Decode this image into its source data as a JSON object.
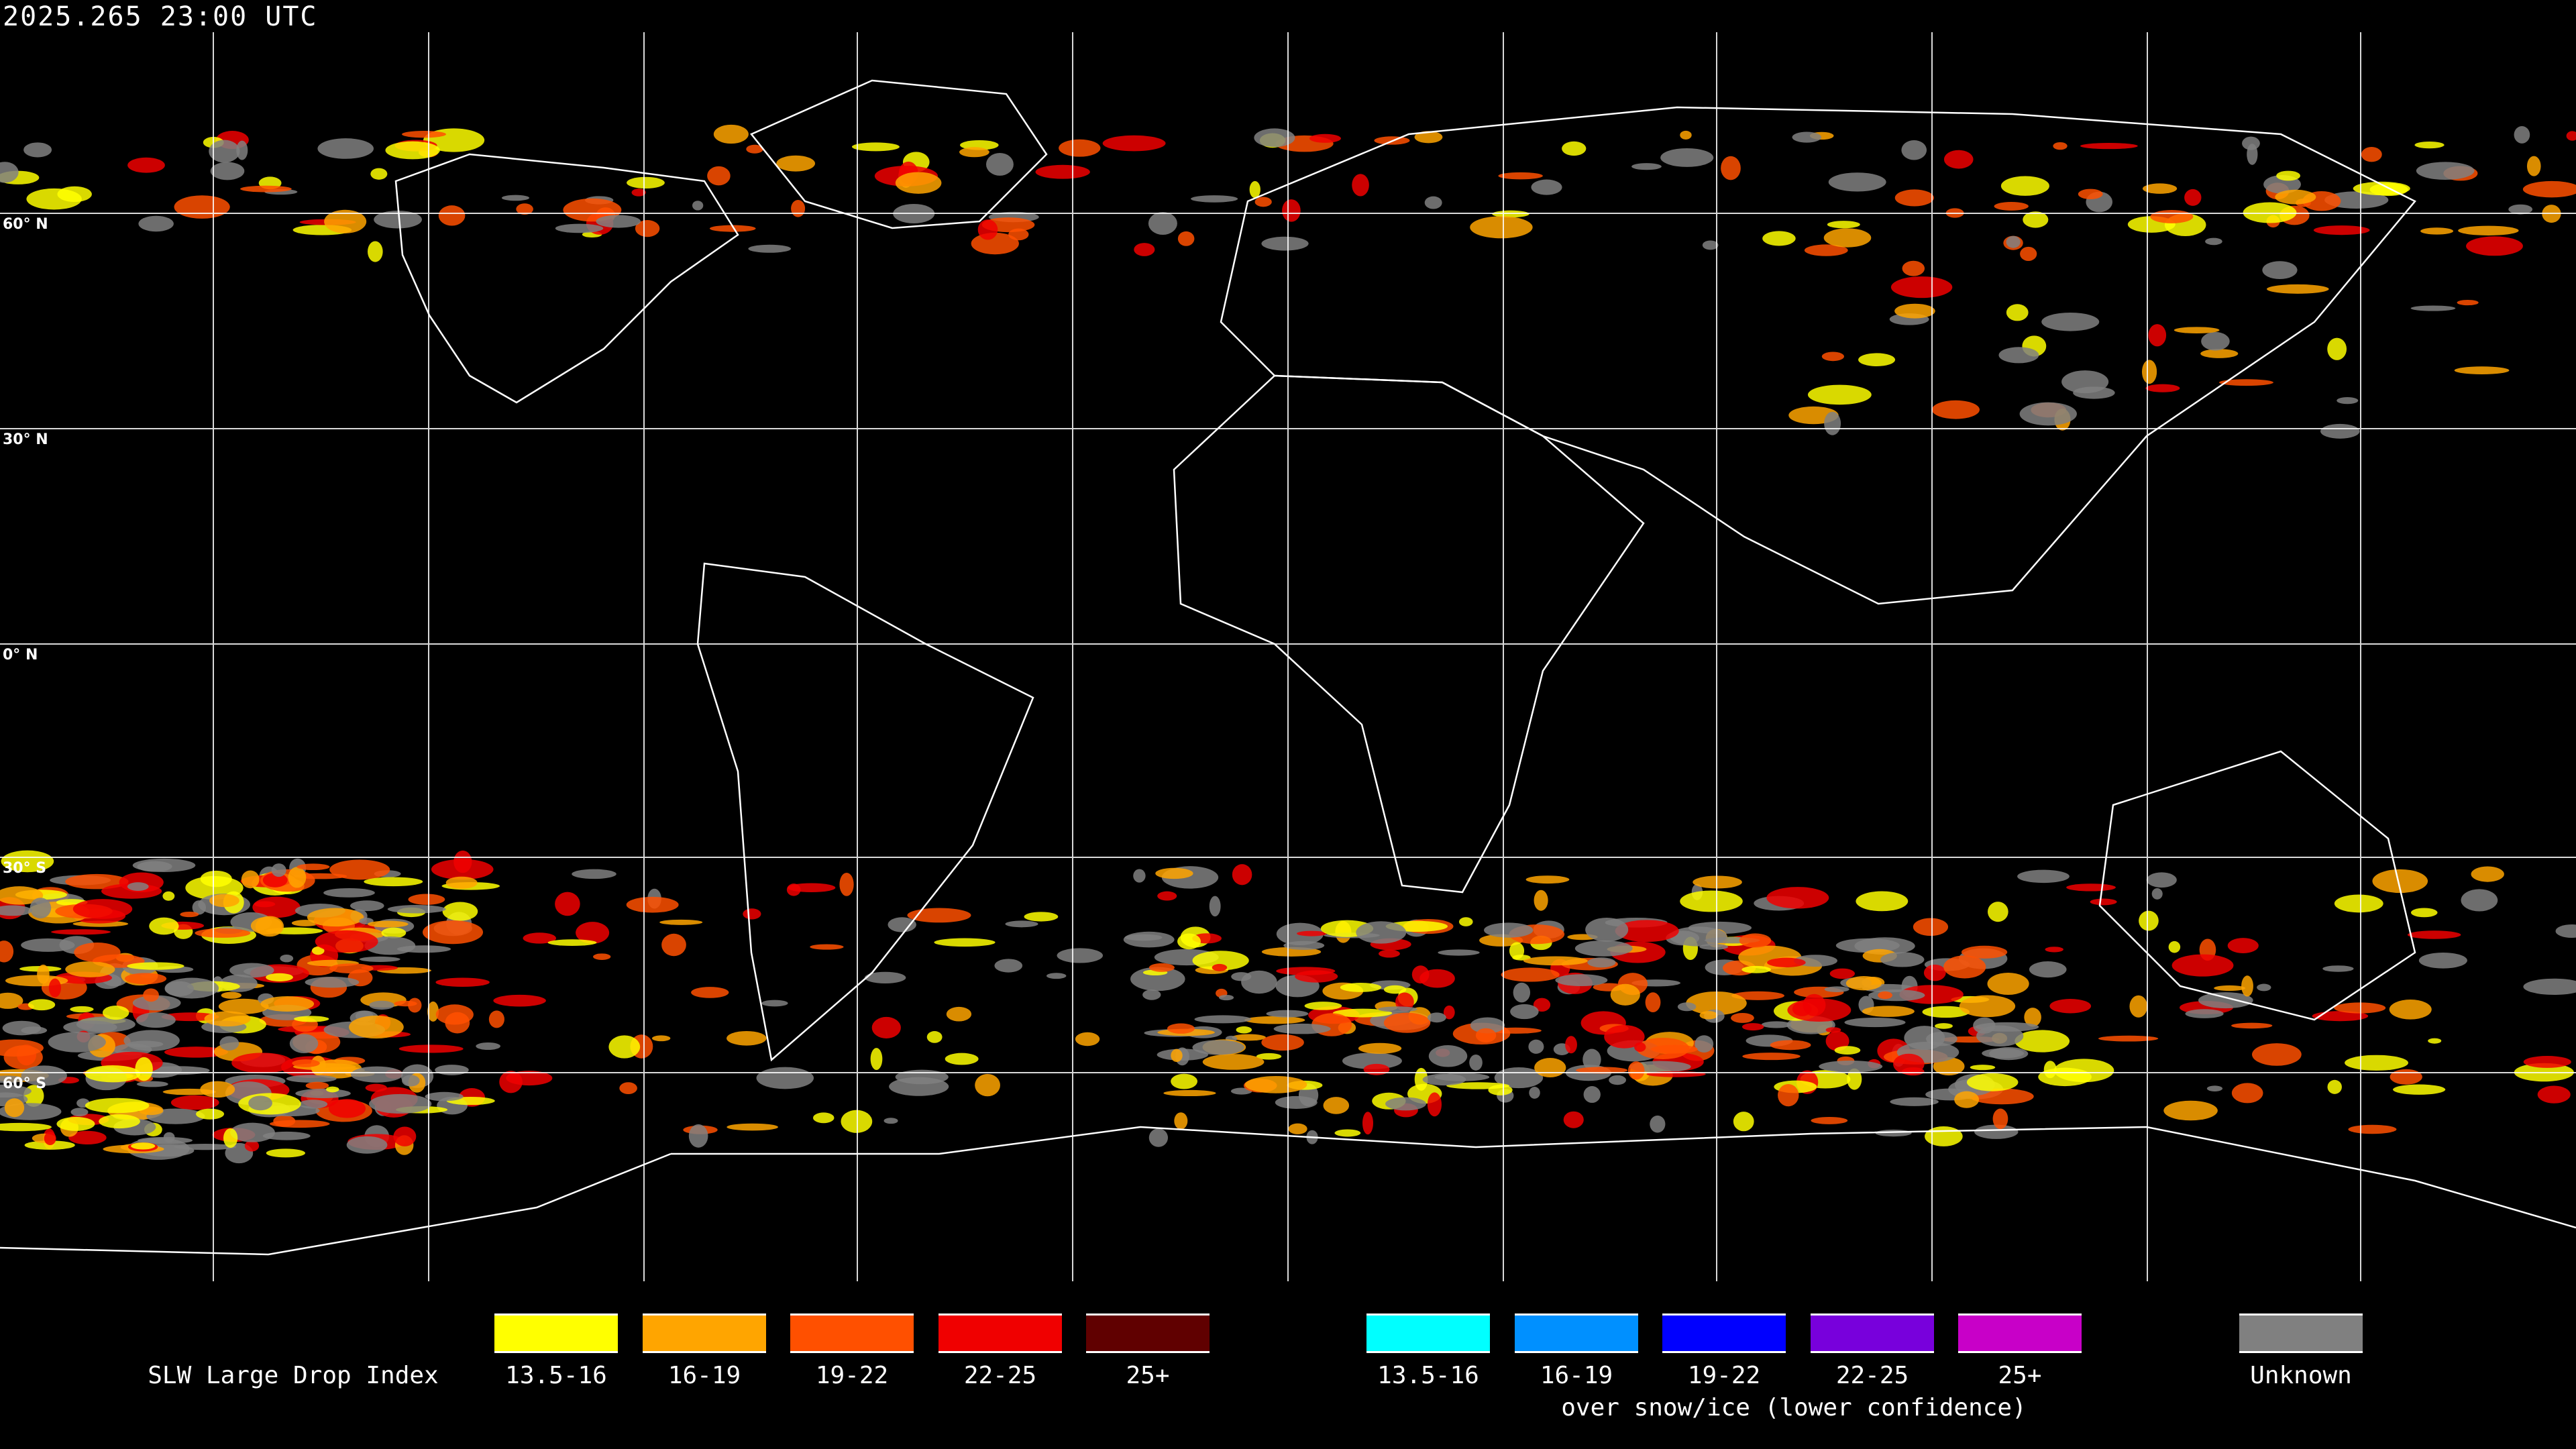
{
  "header": {
    "timestamp": "2025.265 23:00 UTC"
  },
  "map": {
    "lat_labels": [
      "60° N",
      "30° N",
      "0° N",
      "30° S",
      "60° S"
    ],
    "grid": "15-degree lat/lon graticule, white",
    "background": "#000000",
    "coastline_color": "#ffffff"
  },
  "legend": {
    "title": "SLW Large Drop Index",
    "main": [
      {
        "label": "13.5-16",
        "color": "#ffff00"
      },
      {
        "label": "16-19",
        "color": "#ffa500"
      },
      {
        "label": "19-22",
        "color": "#ff5000"
      },
      {
        "label": "22-25",
        "color": "#f00000"
      },
      {
        "label": "25+",
        "color": "#600000"
      }
    ],
    "snow": [
      {
        "label": "13.5-16",
        "color": "#00ffff"
      },
      {
        "label": "16-19",
        "color": "#0090ff"
      },
      {
        "label": "19-22",
        "color": "#0000ff"
      },
      {
        "label": "22-25",
        "color": "#7800dc"
      },
      {
        "label": "25+",
        "color": "#c800c8"
      }
    ],
    "snow_caption": "over snow/ice (lower confidence)",
    "unknown": {
      "label": "Unknown",
      "color": "#808080"
    }
  }
}
